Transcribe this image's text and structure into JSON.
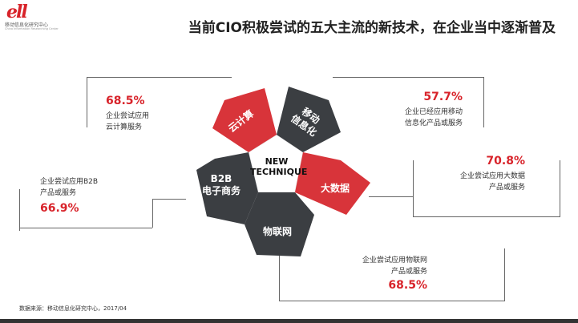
{
  "logo": {
    "mark": "ell",
    "name_cn": "移动信息化研究中心",
    "name_en": "China Information Researching Center"
  },
  "title": "当前CIO积极尝试的五大主流的新技术，在企业当中逐渐普及",
  "center": {
    "label_line1": "NEW",
    "label_line2": "TECHNIQUE"
  },
  "petals": {
    "cloud": {
      "label": "云计算",
      "color": "#d8343a"
    },
    "mobile": {
      "label_line1": "移动",
      "label_line2": "信息化",
      "color": "#3b3e42"
    },
    "bigdata": {
      "label": "大数据",
      "color": "#d8343a"
    },
    "iot": {
      "label": "物联网",
      "color": "#3b3e42"
    },
    "b2b": {
      "label_line1": "B2B",
      "label_line2": "电子商务",
      "color": "#3b3e42"
    }
  },
  "stats": {
    "cloud": {
      "pct": "68.5%",
      "desc_line1": "企业尝试应用",
      "desc_line2": "云计算服务"
    },
    "mobile": {
      "pct": "57.7%",
      "desc_line1": "企业已经应用移动",
      "desc_line2": "信息化产品或服务"
    },
    "bigdata": {
      "pct": "70.8%",
      "desc_line1": "企业尝试应用大数据",
      "desc_line2": "产品或服务"
    },
    "b2b": {
      "pct": "66.9%",
      "desc_line1": "企业尝试应用B2B",
      "desc_line2": "产品或服务"
    },
    "iot": {
      "pct": "68.5%",
      "desc_line1": "企业尝试应用物联网",
      "desc_line2": "产品或服务"
    }
  },
  "source": "数据来源：移动信息化研究中心，2017/04"
}
